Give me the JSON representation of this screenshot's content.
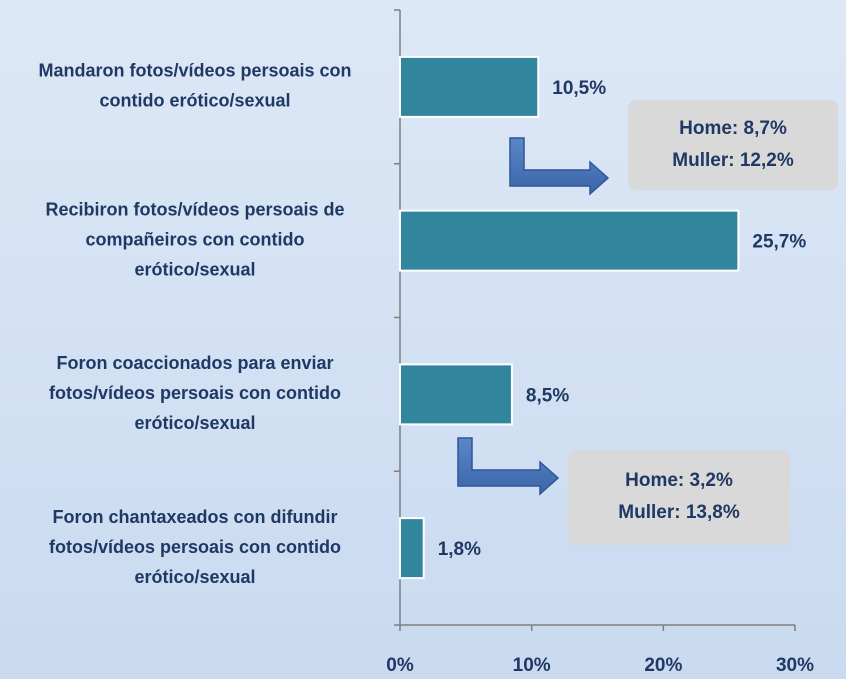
{
  "chart_data": {
    "type": "barh",
    "categories": [
      [
        "Mandaron fotos/vídeos persoais con",
        "contido erótico/sexual"
      ],
      [
        "Recibiron fotos/vídeos persoais de",
        "compañeiros con contido",
        "erótico/sexual"
      ],
      [
        "Foron coaccionados para enviar",
        "fotos/vídeos persoais con contido",
        "erótico/sexual"
      ],
      [
        "Foron chantaxeados con difundir",
        "fotos/vídeos persoais con contido",
        "erótico/sexual"
      ]
    ],
    "values": [
      10.5,
      25.7,
      8.5,
      1.8
    ],
    "value_labels": [
      "10,5%",
      "25,7%",
      "8,5%",
      "1,8%"
    ],
    "color": "#31859c",
    "xlim": [
      0,
      30
    ],
    "xticks": [
      {
        "value": 0,
        "label": "0%"
      },
      {
        "value": 10,
        "label": "10%"
      },
      {
        "value": 20,
        "label": "20%"
      },
      {
        "value": 30,
        "label": "30%"
      }
    ],
    "annotations": [
      {
        "category": 0,
        "lines": [
          "Home: 8,7%",
          "Muller: 12,2%"
        ]
      },
      {
        "category": 2,
        "lines": [
          "Home: 3,2%",
          "Muller: 13,8%"
        ]
      }
    ]
  }
}
